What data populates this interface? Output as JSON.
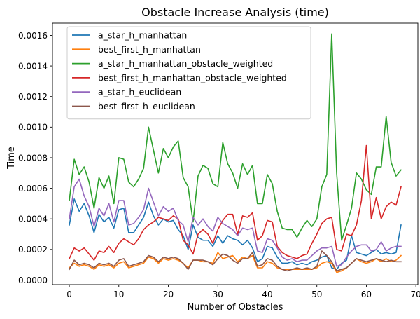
{
  "chart_data": {
    "type": "line",
    "title": "Obstacle Increase Analysis (time)",
    "xlabel": "Number of Obstacles",
    "ylabel": "Time",
    "xlim": [
      -3.4,
      70.4
    ],
    "ylim": [
      -3e-05,
      0.00168
    ],
    "xticks": [
      0,
      10,
      20,
      30,
      40,
      50,
      60,
      70
    ],
    "xtick_labels": [
      "0",
      "10",
      "20",
      "30",
      "40",
      "50",
      "60",
      "70"
    ],
    "yticks": [
      0,
      0.0002,
      0.0004,
      0.0006,
      0.0008,
      0.001,
      0.0012,
      0.0014,
      0.0016
    ],
    "ytick_labels": [
      "0.0000",
      "0.0002",
      "0.0004",
      "0.0006",
      "0.0008",
      "0.0010",
      "0.0012",
      "0.0014",
      "0.0016"
    ],
    "grid": false,
    "legend_position": "top-left",
    "x": [
      0,
      1,
      2,
      3,
      4,
      5,
      6,
      7,
      8,
      9,
      10,
      11,
      12,
      13,
      14,
      15,
      16,
      17,
      18,
      19,
      20,
      21,
      22,
      23,
      24,
      25,
      26,
      27,
      28,
      29,
      30,
      31,
      32,
      33,
      34,
      35,
      36,
      37,
      38,
      39,
      40,
      41,
      42,
      43,
      44,
      45,
      46,
      47,
      48,
      49,
      50,
      51,
      52,
      53,
      54,
      55,
      56,
      57,
      58,
      59,
      60,
      61,
      62,
      63,
      64,
      65,
      66,
      67
    ],
    "series": [
      {
        "name": "a_star_h_manhattan",
        "color": "#1f77b4",
        "values": [
          0.00036,
          0.00053,
          0.00045,
          0.0005,
          0.00042,
          0.00031,
          0.00043,
          0.00038,
          0.00041,
          0.00034,
          0.00046,
          0.00047,
          0.00031,
          0.00031,
          0.00036,
          0.00041,
          0.00051,
          0.00042,
          0.00036,
          0.0004,
          0.00038,
          0.00039,
          0.00033,
          0.00029,
          0.0002,
          0.00036,
          0.00028,
          0.00026,
          0.00026,
          0.00022,
          0.00029,
          0.00024,
          0.00029,
          0.00027,
          0.00026,
          0.00023,
          0.00026,
          0.00021,
          0.00012,
          0.00014,
          0.00022,
          0.00021,
          0.00015,
          0.00011,
          0.00011,
          0.00012,
          0.0001,
          0.00011,
          0.0001,
          0.00012,
          0.00013,
          0.00015,
          0.00016,
          8e-05,
          7e-05,
          0.00011,
          0.00013,
          0.00029,
          0.00018,
          0.00017,
          0.00016,
          0.00018,
          0.0002,
          0.00017,
          0.00018,
          0.00017,
          0.00018,
          0.00036
        ]
      },
      {
        "name": "best_first_h_manhattan",
        "color": "#ff7f0e",
        "values": [
          8e-05,
          0.00011,
          9e-05,
          0.0001,
          9e-05,
          7e-05,
          0.0001,
          9e-05,
          0.0001,
          8e-05,
          0.00011,
          0.00012,
          8e-05,
          9e-05,
          0.0001,
          0.00011,
          0.00015,
          0.00014,
          0.00011,
          0.00014,
          0.00013,
          0.00014,
          0.00013,
          0.00011,
          8e-05,
          0.00013,
          0.00013,
          0.00012,
          0.00012,
          0.00011,
          0.00018,
          0.00014,
          0.00015,
          0.00016,
          0.00012,
          0.00015,
          0.00014,
          0.00016,
          8e-05,
          8e-05,
          0.00012,
          0.00011,
          8e-05,
          7e-05,
          7e-05,
          7e-05,
          7e-05,
          7e-05,
          7e-05,
          7e-05,
          8e-05,
          0.00011,
          0.00012,
          0.00011,
          5e-05,
          6e-05,
          8e-05,
          0.00011,
          0.00014,
          0.00012,
          0.00011,
          0.00012,
          0.00014,
          0.00012,
          0.00014,
          0.00012,
          0.00013,
          0.00016
        ]
      },
      {
        "name": "a_star_h_manhattan_obstacle_weighted",
        "color": "#2ca02c",
        "values": [
          0.00052,
          0.00079,
          0.00069,
          0.00074,
          0.00064,
          0.00047,
          0.00067,
          0.0006,
          0.00068,
          0.0005,
          0.0008,
          0.00079,
          0.00064,
          0.00061,
          0.00066,
          0.00073,
          0.001,
          0.00085,
          0.0007,
          0.00086,
          0.0008,
          0.00087,
          0.00091,
          0.00067,
          0.00061,
          0.00038,
          0.00068,
          0.00075,
          0.00073,
          0.00063,
          0.00061,
          0.0009,
          0.00076,
          0.0007,
          0.0006,
          0.00076,
          0.00069,
          0.00075,
          0.0005,
          0.0005,
          0.00069,
          0.00063,
          0.00045,
          0.00034,
          0.00033,
          0.00033,
          0.00028,
          0.00034,
          0.00039,
          0.00035,
          0.0004,
          0.00061,
          0.00069,
          0.00161,
          0.0007,
          0.00026,
          0.00036,
          0.00047,
          0.0007,
          0.00066,
          0.00059,
          0.00056,
          0.00074,
          0.00074,
          0.00107,
          0.00077,
          0.00068,
          0.00072
        ]
      },
      {
        "name": "best_first_h_manhattan_obstacle_weighted",
        "color": "#d62728",
        "values": [
          0.00014,
          0.00021,
          0.00019,
          0.00021,
          0.00017,
          0.00013,
          0.00019,
          0.00018,
          0.00022,
          0.00018,
          0.00024,
          0.00027,
          0.00025,
          0.00023,
          0.00027,
          0.00033,
          0.00036,
          0.00038,
          0.00041,
          0.0004,
          0.00039,
          0.00042,
          0.0004,
          0.00026,
          0.00023,
          0.00017,
          0.0003,
          0.00033,
          0.0003,
          0.00024,
          0.00033,
          0.00039,
          0.00043,
          0.00043,
          0.0003,
          0.00042,
          0.00041,
          0.00044,
          0.00026,
          0.00029,
          0.00039,
          0.00038,
          0.00022,
          0.00018,
          0.00016,
          0.00015,
          0.00014,
          0.00016,
          0.00017,
          0.00024,
          0.0003,
          0.00037,
          0.0004,
          0.00041,
          0.0002,
          0.00019,
          0.0003,
          0.00029,
          0.00036,
          0.00052,
          0.00088,
          0.0004,
          0.00054,
          0.0004,
          0.00048,
          0.00051,
          0.00049,
          0.00061
        ]
      },
      {
        "name": "a_star_h_euclidean",
        "color": "#9467bd",
        "values": [
          0.0004,
          0.00061,
          0.00066,
          0.00055,
          0.00048,
          0.00035,
          0.00047,
          0.00042,
          0.0005,
          0.00038,
          0.00052,
          0.00052,
          0.00036,
          0.00037,
          0.00041,
          0.00046,
          0.0006,
          0.00051,
          0.00042,
          0.00048,
          0.00045,
          0.00047,
          0.00039,
          0.00036,
          0.00025,
          0.00041,
          0.00036,
          0.0004,
          0.00035,
          0.00032,
          0.00041,
          0.00037,
          0.00035,
          0.00033,
          0.00029,
          0.00034,
          0.00033,
          0.00034,
          0.00019,
          0.00018,
          0.00027,
          0.00026,
          0.00021,
          0.00015,
          0.00013,
          0.00014,
          0.00012,
          0.00013,
          0.00013,
          0.00016,
          0.00019,
          0.00021,
          0.00021,
          0.00022,
          9e-05,
          0.0001,
          0.00015,
          0.00019,
          0.00022,
          0.00023,
          0.00023,
          0.00019,
          0.0002,
          0.00025,
          0.00019,
          0.00021,
          0.00022,
          0.00022
        ]
      },
      {
        "name": "best_first_h_euclidean",
        "color": "#8c564b",
        "values": [
          7e-05,
          0.00013,
          0.0001,
          0.00011,
          0.0001,
          8e-05,
          0.00011,
          0.0001,
          0.00011,
          9e-05,
          0.00013,
          0.00014,
          9e-05,
          0.0001,
          0.00011,
          0.00012,
          0.00016,
          0.00015,
          0.00012,
          0.00015,
          0.00014,
          0.00015,
          0.00014,
          0.00011,
          7e-05,
          0.00013,
          0.00013,
          0.00013,
          0.00012,
          0.0001,
          0.00014,
          0.00017,
          0.00016,
          0.00013,
          0.00011,
          0.00014,
          0.00014,
          0.00018,
          9e-05,
          0.0001,
          0.00014,
          0.00013,
          9e-05,
          7e-05,
          6e-05,
          7e-05,
          8e-05,
          7e-05,
          8e-05,
          7e-05,
          9e-05,
          0.00019,
          0.00016,
          0.00012,
          6e-05,
          7e-05,
          8e-05,
          0.00011,
          0.00014,
          0.00013,
          0.00012,
          0.00013,
          0.00014,
          0.00013,
          0.00012,
          0.00013,
          0.00012,
          0.00012
        ]
      }
    ]
  }
}
